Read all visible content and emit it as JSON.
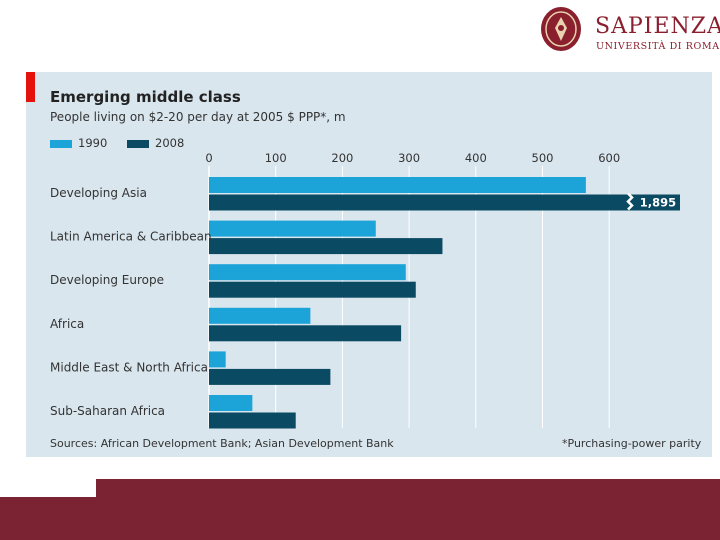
{
  "logo": {
    "name": "SAPIENZA",
    "subtitle": "UNIVERSITÀ DI ROMA"
  },
  "colors": {
    "series_1990": "#1ca3d8",
    "series_2008": "#0b4a63",
    "panel": "#d9e6ee",
    "accent": "#e3120b",
    "brand": "#7b2333"
  },
  "chart_data": {
    "type": "bar",
    "orientation": "horizontal",
    "title": "Emerging middle class",
    "subtitle": "People living on $2-20 per day at 2005 $ PPP*, m",
    "categories": [
      "Developing Asia",
      "Latin America & Caribbean",
      "Developing Europe",
      "Africa",
      "Middle East & North Africa",
      "Sub-Saharan Africa"
    ],
    "series": [
      {
        "name": "1990",
        "values": [
          565,
          250,
          295,
          152,
          25,
          65
        ]
      },
      {
        "name": "2008",
        "values": [
          1895,
          350,
          310,
          288,
          182,
          130
        ]
      }
    ],
    "xlim": [
      0,
      650
    ],
    "ticks": [
      0,
      100,
      200,
      300,
      400,
      500,
      600
    ],
    "axis_break": {
      "series": "2008",
      "category": "Developing Asia",
      "label": "1,895"
    },
    "source": "Sources: African Development Bank; Asian Development Bank",
    "footnote": "*Purchasing-power parity"
  }
}
